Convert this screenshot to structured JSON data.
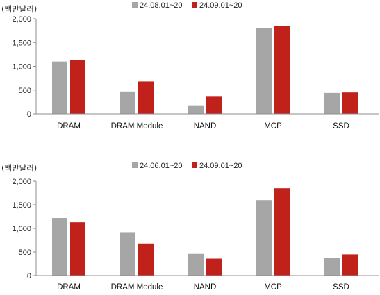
{
  "chart_data": [
    {
      "type": "bar",
      "title": "",
      "unit_label": "(백만달러)",
      "categories": [
        "DRAM",
        "DRAM Module",
        "NAND",
        "MCP",
        "SSD"
      ],
      "series": [
        {
          "name": "24.08.01~20",
          "color": "#a6a6a6",
          "values": [
            1100,
            470,
            180,
            1800,
            440
          ]
        },
        {
          "name": "24.09.01~20",
          "color": "#c0211a",
          "values": [
            1130,
            680,
            360,
            1850,
            450
          ]
        }
      ],
      "ylim": [
        0,
        2000
      ],
      "yticks": [
        0,
        500,
        1000,
        1500,
        2000
      ],
      "ytick_labels": [
        "0",
        "500",
        "1,000",
        "1,500",
        "2,000"
      ],
      "grid": false,
      "legend_position": "top-center"
    },
    {
      "type": "bar",
      "title": "",
      "unit_label": "(백만달러)",
      "categories": [
        "DRAM",
        "DRAM Module",
        "NAND",
        "MCP",
        "SSD"
      ],
      "series": [
        {
          "name": "24.06.01~20",
          "color": "#a6a6a6",
          "values": [
            1220,
            920,
            460,
            1600,
            380
          ]
        },
        {
          "name": "24.09.01~20",
          "color": "#c0211a",
          "values": [
            1130,
            680,
            360,
            1850,
            450
          ]
        }
      ],
      "ylim": [
        0,
        2000
      ],
      "yticks": [
        0,
        500,
        1000,
        1500,
        2000
      ],
      "ytick_labels": [
        "0",
        "500",
        "1,000",
        "1,500",
        "2,000"
      ],
      "grid": false,
      "legend_position": "top-center"
    }
  ]
}
